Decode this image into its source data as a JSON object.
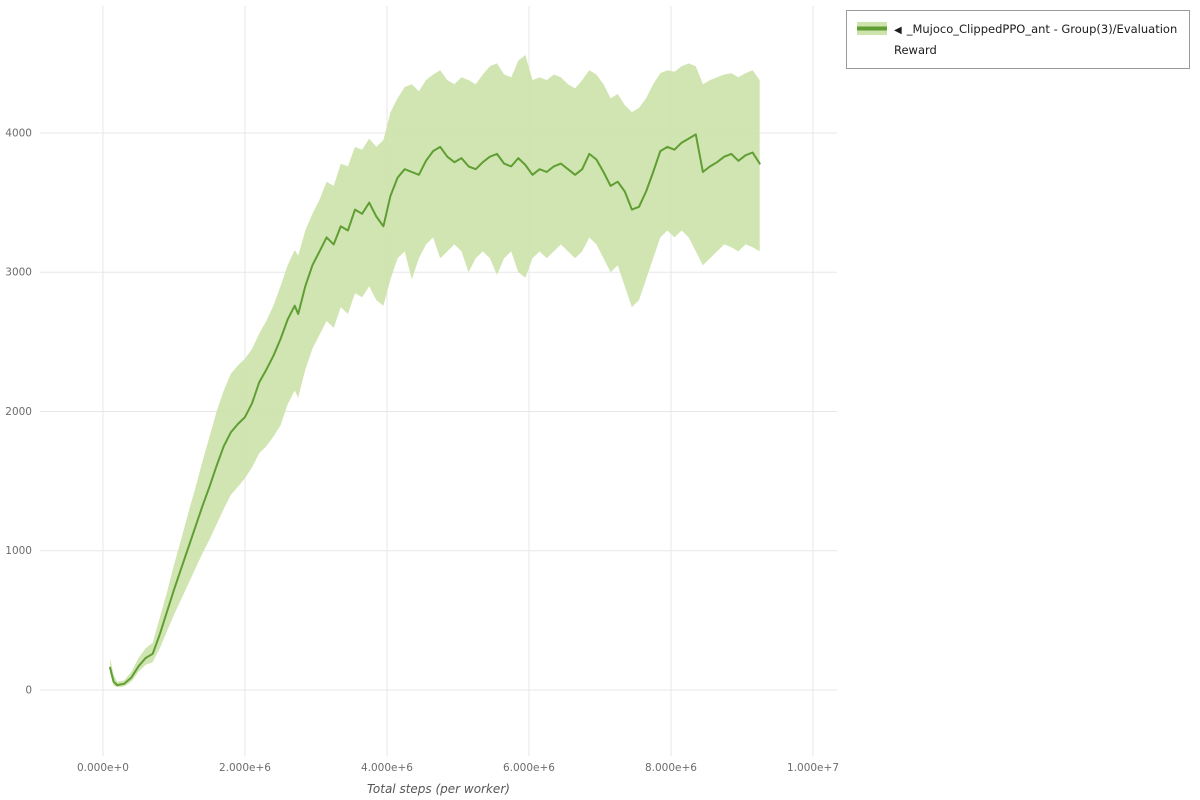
{
  "chart_data": {
    "type": "line",
    "title": "",
    "xlabel": "Total steps (per worker)",
    "ylabel": "",
    "legend_marker": "◀",
    "legend_position": "top-right",
    "grid": true,
    "grid_color": "#e7e7e7",
    "tick_color": "#6d6d6d",
    "xlim": [
      -887000,
      10338000
    ],
    "ylim": [
      -474,
      4912
    ],
    "x_ticks": [
      {
        "value": 0,
        "label": "0.000e+0"
      },
      {
        "value": 2000000,
        "label": "2.000e+6"
      },
      {
        "value": 4000000,
        "label": "4.000e+6"
      },
      {
        "value": 6000000,
        "label": "6.000e+6"
      },
      {
        "value": 8000000,
        "label": "8.000e+6"
      },
      {
        "value": 10000000,
        "label": "1.000e+7"
      }
    ],
    "y_ticks": [
      {
        "value": 0,
        "label": "0"
      },
      {
        "value": 1000,
        "label": "1000"
      },
      {
        "value": 2000,
        "label": "2000"
      },
      {
        "value": 3000,
        "label": "3000"
      },
      {
        "value": 4000,
        "label": "4000"
      }
    ],
    "series": [
      {
        "name": "_Mujoco_ClippedPPO_ant - Group(3)/Evaluation Reward",
        "color": "#5f9e32",
        "band_color": "#cde3ab",
        "x": [
          100000,
          150000,
          200000,
          300000,
          400000,
          500000,
          600000,
          700000,
          800000,
          900000,
          1000000,
          1100000,
          1200000,
          1300000,
          1400000,
          1500000,
          1600000,
          1700000,
          1800000,
          1900000,
          2000000,
          2100000,
          2200000,
          2300000,
          2400000,
          2500000,
          2600000,
          2700000,
          2750000,
          2850000,
          2950000,
          3050000,
          3150000,
          3250000,
          3350000,
          3450000,
          3550000,
          3650000,
          3750000,
          3850000,
          3950000,
          4050000,
          4150000,
          4250000,
          4350000,
          4450000,
          4550000,
          4650000,
          4750000,
          4850000,
          4950000,
          5050000,
          5150000,
          5250000,
          5350000,
          5450000,
          5550000,
          5650000,
          5750000,
          5850000,
          5950000,
          6050000,
          6150000,
          6250000,
          6350000,
          6450000,
          6550000,
          6650000,
          6750000,
          6850000,
          6950000,
          7050000,
          7150000,
          7250000,
          7350000,
          7450000,
          7550000,
          7650000,
          7750000,
          7850000,
          7950000,
          8050000,
          8150000,
          8250000,
          8350000,
          8450000,
          8550000,
          8650000,
          8750000,
          8850000,
          8950000,
          9050000,
          9150000,
          9250000
        ],
        "mean": [
          160,
          60,
          35,
          45,
          90,
          170,
          230,
          260,
          400,
          560,
          720,
          870,
          1020,
          1170,
          1320,
          1460,
          1610,
          1750,
          1850,
          1910,
          1960,
          2060,
          2210,
          2300,
          2400,
          2520,
          2660,
          2760,
          2700,
          2900,
          3050,
          3150,
          3250,
          3200,
          3330,
          3300,
          3450,
          3420,
          3500,
          3400,
          3330,
          3550,
          3680,
          3740,
          3720,
          3700,
          3800,
          3870,
          3900,
          3830,
          3790,
          3820,
          3760,
          3740,
          3790,
          3830,
          3850,
          3780,
          3760,
          3820,
          3770,
          3700,
          3740,
          3720,
          3760,
          3780,
          3740,
          3700,
          3740,
          3850,
          3810,
          3720,
          3620,
          3650,
          3580,
          3450,
          3470,
          3580,
          3720,
          3870,
          3900,
          3880,
          3930,
          3960,
          3990,
          3720,
          3760,
          3790,
          3830,
          3850,
          3800,
          3840,
          3860,
          3780
        ],
        "lo": [
          120,
          30,
          20,
          25,
          60,
          130,
          180,
          200,
          300,
          420,
          540,
          650,
          760,
          870,
          980,
          1080,
          1190,
          1300,
          1400,
          1460,
          1520,
          1600,
          1700,
          1750,
          1820,
          1900,
          2050,
          2150,
          2100,
          2300,
          2450,
          2550,
          2650,
          2600,
          2750,
          2700,
          2850,
          2820,
          2900,
          2800,
          2760,
          2950,
          3100,
          3150,
          2950,
          3100,
          3200,
          3250,
          3100,
          3150,
          3200,
          3150,
          3000,
          3100,
          3150,
          3100,
          2980,
          3100,
          3150,
          3000,
          2960,
          3100,
          3150,
          3100,
          3150,
          3200,
          3150,
          3100,
          3150,
          3250,
          3200,
          3100,
          3000,
          3050,
          2900,
          2750,
          2800,
          2950,
          3100,
          3250,
          3300,
          3250,
          3300,
          3250,
          3150,
          3050,
          3100,
          3150,
          3200,
          3180,
          3150,
          3200,
          3180,
          3150
        ],
        "hi": [
          230,
          110,
          60,
          70,
          130,
          230,
          300,
          340,
          520,
          700,
          900,
          1080,
          1270,
          1450,
          1640,
          1820,
          2000,
          2150,
          2270,
          2330,
          2380,
          2450,
          2560,
          2650,
          2760,
          2900,
          3050,
          3160,
          3120,
          3300,
          3420,
          3520,
          3650,
          3620,
          3780,
          3760,
          3900,
          3880,
          3960,
          3900,
          3950,
          4150,
          4250,
          4330,
          4350,
          4300,
          4380,
          4420,
          4450,
          4380,
          4350,
          4400,
          4380,
          4350,
          4420,
          4480,
          4500,
          4420,
          4400,
          4520,
          4560,
          4380,
          4400,
          4380,
          4420,
          4400,
          4350,
          4320,
          4380,
          4450,
          4420,
          4350,
          4250,
          4280,
          4200,
          4150,
          4180,
          4250,
          4350,
          4430,
          4450,
          4440,
          4480,
          4500,
          4480,
          4350,
          4380,
          4400,
          4420,
          4430,
          4400,
          4430,
          4450,
          4380
        ]
      }
    ]
  }
}
